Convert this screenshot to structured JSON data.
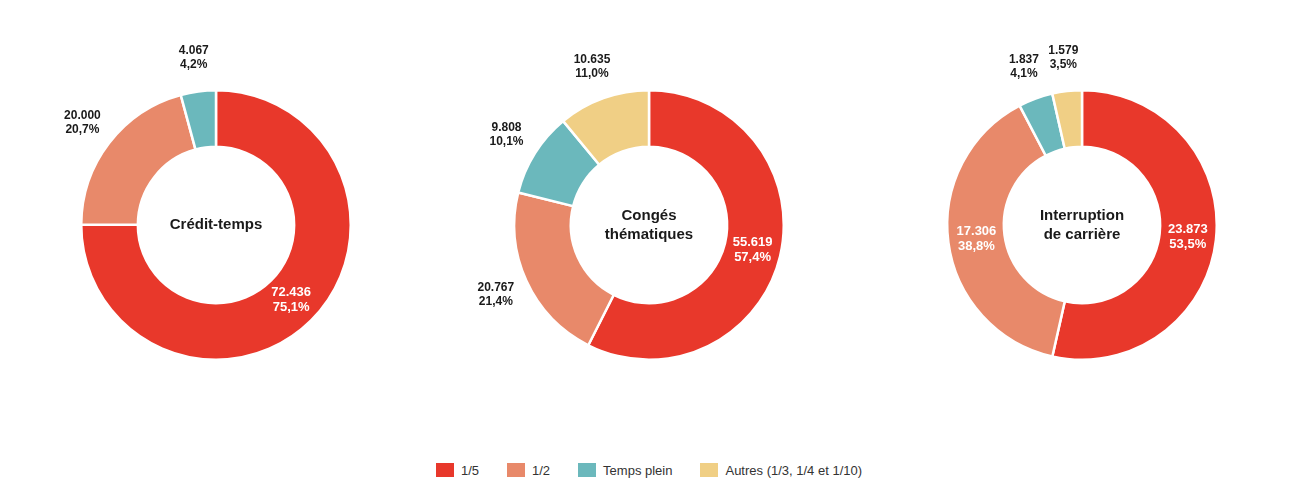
{
  "chart_data": [
    {
      "type": "doughnut",
      "title": [
        "Crédit-temps"
      ],
      "categories": [
        "1/5",
        "1/2",
        "Temps plein",
        "Autres (1/3, 1/4 et 1/10)"
      ],
      "values": [
        72436,
        20000,
        4067,
        0
      ],
      "value_labels": [
        "72.436",
        "20.000",
        "4.067",
        null
      ],
      "percentages": [
        75.1,
        20.7,
        4.2,
        null
      ],
      "percentage_labels": [
        "75,1%",
        "20,7%",
        "4,2%",
        null
      ],
      "colors": [
        "#E8382B",
        "#E8896A",
        "#6BB8BC",
        "#F0CF85"
      ],
      "data_labels": true,
      "legend": "bottom"
    },
    {
      "type": "doughnut",
      "title": [
        "Congés",
        "thématiques"
      ],
      "categories": [
        "1/5",
        "1/2",
        "Temps plein",
        "Autres (1/3, 1/4 et 1/10)"
      ],
      "values": [
        55619,
        20767,
        9808,
        10635
      ],
      "value_labels": [
        "55.619",
        "20.767",
        "9.808",
        "10.635"
      ],
      "percentages": [
        57.4,
        21.4,
        10.1,
        11.0
      ],
      "percentage_labels": [
        "57,4%",
        "21,4%",
        "10,1%",
        "11,0%"
      ],
      "colors": [
        "#E8382B",
        "#E8896A",
        "#6BB8BC",
        "#F0CF85"
      ],
      "data_labels": true,
      "legend": "bottom"
    },
    {
      "type": "doughnut",
      "title": [
        "Interruption",
        "de carrière"
      ],
      "categories": [
        "1/5",
        "1/2",
        "Temps plein",
        "Autres (1/3, 1/4 et 1/10)"
      ],
      "values": [
        23873,
        17306,
        1837,
        1579
      ],
      "value_labels": [
        "23.873",
        "17.306",
        "1.837",
        "1.579"
      ],
      "percentages": [
        53.5,
        38.8,
        4.1,
        3.5
      ],
      "percentage_labels": [
        "53,5%",
        "38,8%",
        "4,1%",
        "3,5%"
      ],
      "colors": [
        "#E8382B",
        "#E8896A",
        "#6BB8BC",
        "#F0CF85"
      ],
      "data_labels": true,
      "legend": "bottom"
    }
  ]
}
